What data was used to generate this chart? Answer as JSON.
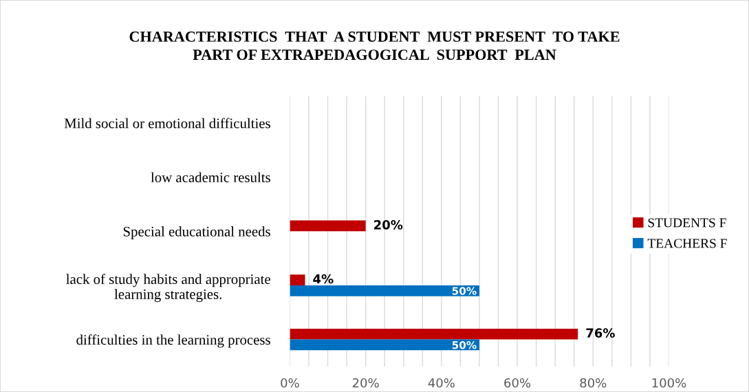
{
  "chart_data": {
    "type": "bar",
    "orientation": "horizontal",
    "title": "CHARACTERISTICS  THAT  A STUDENT  MUST PRESENT  TO TAKE\nPART OF EXTRAPEDAGOGICAL  SUPPORT  PLAN",
    "categories": [
      "Mild social or emotional difficulties",
      "low academic results",
      "Special educational needs",
      "lack of study habits and appropriate\nlearning strategies.",
      "difficulties in the learning process"
    ],
    "series": [
      {
        "name": "STUDENTS F",
        "color": "#c00000",
        "values": [
          null,
          null,
          20,
          4,
          76
        ],
        "value_labels": [
          null,
          null,
          "20%",
          "4%",
          "76%"
        ]
      },
      {
        "name": "TEACHERS F",
        "color": "#0070c0",
        "values": [
          null,
          null,
          null,
          50,
          50
        ],
        "value_labels": [
          null,
          null,
          null,
          "50%",
          "50%"
        ]
      }
    ],
    "xlim": [
      0,
      100
    ],
    "xticks": [
      {
        "value": 0,
        "label": "0%"
      },
      {
        "value": 5,
        "label": null
      },
      {
        "value": 10,
        "label": null
      },
      {
        "value": 15,
        "label": null
      },
      {
        "value": 20,
        "label": "20%"
      },
      {
        "value": 25,
        "label": null
      },
      {
        "value": 30,
        "label": null
      },
      {
        "value": 35,
        "label": null
      },
      {
        "value": 40,
        "label": "40%"
      },
      {
        "value": 45,
        "label": null
      },
      {
        "value": 50,
        "label": null
      },
      {
        "value": 55,
        "label": null
      },
      {
        "value": 60,
        "label": "60%"
      },
      {
        "value": 65,
        "label": null
      },
      {
        "value": 70,
        "label": null
      },
      {
        "value": 75,
        "label": null
      },
      {
        "value": 80,
        "label": "80%"
      },
      {
        "value": 85,
        "label": null
      },
      {
        "value": 90,
        "label": null
      },
      {
        "value": 95,
        "label": null
      },
      {
        "value": 100,
        "label": "100%"
      }
    ],
    "grid": "x",
    "legend": "right"
  }
}
